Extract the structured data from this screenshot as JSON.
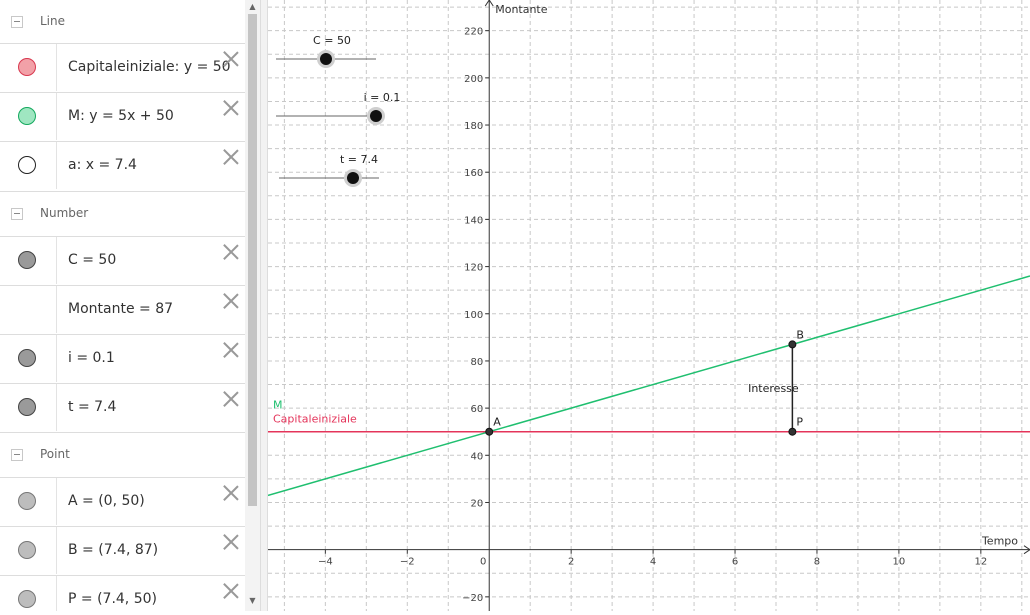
{
  "algebra": {
    "line_cat": {
      "label": "Line"
    },
    "line_items": [
      {
        "label": "Capitaleiniziale: y = 50",
        "fill": "#f2a1a8",
        "stroke": "#d8384f"
      },
      {
        "label": "M: y = 5x + 50",
        "fill": "#9fe6c1",
        "stroke": "#14a95e"
      },
      {
        "label": "a: x = 7.4",
        "fill": "#ffffff",
        "stroke": "#222222"
      }
    ],
    "number_cat": {
      "label": "Number"
    },
    "number_items": [
      {
        "label": "C = 50",
        "fill": "#9a9a9a",
        "stroke": "#444444"
      },
      {
        "label": "Montante = 87",
        "fill": "",
        "stroke": ""
      },
      {
        "label": "i = 0.1",
        "fill": "#9a9a9a",
        "stroke": "#444444"
      },
      {
        "label": "t = 7.4",
        "fill": "#9a9a9a",
        "stroke": "#444444"
      }
    ],
    "point_cat": {
      "label": "Point"
    },
    "point_items": [
      {
        "label": "A = (0, 50)",
        "fill": "#bdbdbd",
        "stroke": "#777777"
      },
      {
        "label": "B = (7.4, 87)",
        "fill": "#bdbdbd",
        "stroke": "#777777"
      },
      {
        "label": "P = (7.4, 50)",
        "fill": "#bdbdbd",
        "stroke": "#777777"
      }
    ]
  },
  "graph": {
    "x_axis_label": "Tempo",
    "y_axis_label": "Montante",
    "x_ticks": [
      "−4",
      "−2",
      "0",
      "2",
      "4",
      "6",
      "8",
      "10",
      "12"
    ],
    "y_ticks": [
      "−20",
      "20",
      "40",
      "60",
      "80",
      "100",
      "120",
      "140",
      "160",
      "180",
      "200",
      "220"
    ],
    "x_range": [
      -5.4,
      13.2
    ],
    "y_range": [
      -26,
      233
    ],
    "x_tick_values": [
      -4,
      -2,
      0,
      2,
      4,
      6,
      8,
      10,
      12
    ],
    "y_tick_values": [
      -20,
      20,
      40,
      60,
      80,
      100,
      120,
      140,
      160,
      180,
      200,
      220
    ],
    "sliders": [
      {
        "label": "C = 50",
        "value_fraction": 0.5
      },
      {
        "label": "i = 0.1",
        "value_fraction": 1.0
      },
      {
        "label": "t = 7.4",
        "value_fraction": 0.74
      }
    ],
    "line_M": {
      "label": "M",
      "slope": 5,
      "intercept": 50,
      "color": "#1fbf6f"
    },
    "line_capitale": {
      "label": "Capitaleiniziale",
      "y": 50,
      "color": "#e4345a"
    },
    "segment_label": "Interesse",
    "points": [
      {
        "name": "A",
        "x": 0,
        "y": 50
      },
      {
        "name": "B",
        "x": 7.4,
        "y": 87
      },
      {
        "name": "P",
        "x": 7.4,
        "y": 50
      }
    ]
  }
}
